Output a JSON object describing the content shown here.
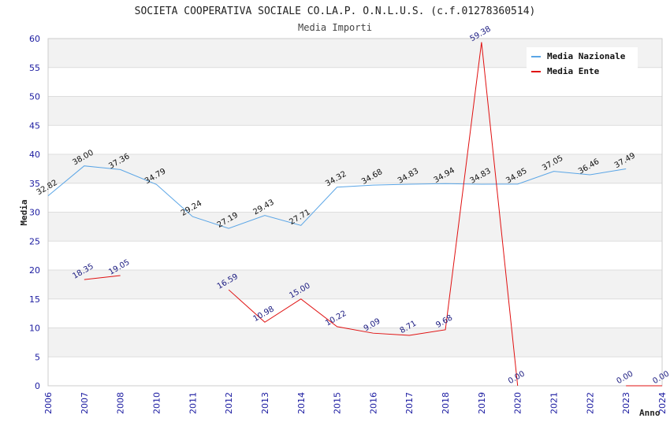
{
  "chart_data": {
    "type": "line",
    "title": "SOCIETA COOPERATIVA SOCIALE CO.LA.P. O.N.L.U.S. (c.f.01278360514)",
    "subtitle": "Media Importi",
    "xlabel": "Anno",
    "ylabel": "Media",
    "ylim": [
      0,
      60
    ],
    "yticks": [
      "0",
      "5",
      "10",
      "15",
      "20",
      "25",
      "30",
      "35",
      "40",
      "45",
      "50",
      "55",
      "60"
    ],
    "categories": [
      "2006",
      "2007",
      "2008",
      "2010",
      "2011",
      "2012",
      "2013",
      "2014",
      "2015",
      "2016",
      "2017",
      "2018",
      "2019",
      "2020",
      "2021",
      "2022",
      "2023",
      "2024"
    ],
    "grid": true,
    "legend_position": "top-right",
    "series": [
      {
        "name": "Media Nazionale",
        "color": "#5aa5e6",
        "values": [
          32.82,
          38.0,
          37.36,
          34.79,
          29.24,
          27.19,
          29.43,
          27.71,
          34.32,
          34.68,
          34.83,
          34.94,
          34.83,
          34.85,
          37.05,
          36.46,
          37.49,
          null
        ],
        "labels": [
          "32.82",
          "38.00",
          "37.36",
          "34.79",
          "29.24",
          "27.19",
          "29.43",
          "27.71",
          "34.32",
          "34.68",
          "34.83",
          "34.94",
          "34.83",
          "34.85",
          "37.05",
          "36.46",
          "37.49",
          null
        ]
      },
      {
        "name": "Media Ente",
        "color": "#e01010",
        "values": [
          null,
          18.35,
          19.05,
          null,
          null,
          16.59,
          10.98,
          15.0,
          10.22,
          9.09,
          8.71,
          9.68,
          59.38,
          0.0,
          null,
          null,
          0.0,
          0.0
        ],
        "labels": [
          null,
          "18.35",
          "19.05",
          null,
          null,
          "16.59",
          "10.98",
          "15.00",
          "10.22",
          "9.09",
          "8.71",
          "9.68",
          "59.38",
          "0.00",
          null,
          null,
          "0.00",
          "0.00"
        ]
      }
    ]
  }
}
